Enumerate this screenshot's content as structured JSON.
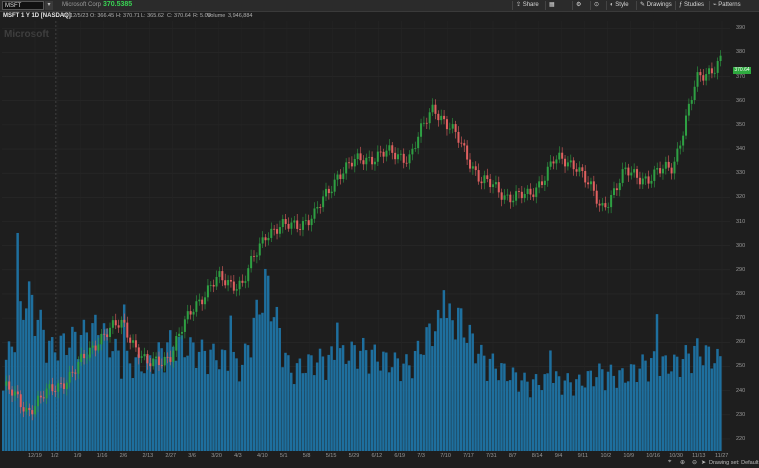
{
  "header": {
    "symbol": "MSFT",
    "company": "Microsoft Corp",
    "last_price": "370.5385",
    "buttons": [
      {
        "label": "Share",
        "icon": "share-icon"
      },
      {
        "label": "",
        "icon": "layout-icon"
      },
      {
        "label": "",
        "icon": "gear-icon"
      },
      {
        "label": "",
        "icon": "lock-icon"
      },
      {
        "label": "Style",
        "icon": "style-icon"
      },
      {
        "label": "Drawings",
        "icon": "pencil-icon"
      },
      {
        "label": "Studies",
        "icon": "studies-icon"
      },
      {
        "label": "Patterns",
        "icon": "patterns-icon"
      }
    ],
    "rss_glyph": "⚙",
    "menu_glyph": "☰"
  },
  "info": {
    "study": "MSFT 1 Y 1D [NASDAQ]",
    "date": "D: 12/5/23",
    "open": "O: 366.45",
    "high": "H: 370.71",
    "low": "L: 365.62",
    "close": "C: 370.64",
    "rate": "R: 5.00",
    "volume_label": "Volume",
    "volume": "3,946,884"
  },
  "watermark": "Microsoft",
  "price_tag": "370.64",
  "y_axis": [
    "390",
    "380",
    "370",
    "360",
    "350",
    "340",
    "330",
    "320",
    "310",
    "300",
    "290",
    "280",
    "270",
    "260",
    "250",
    "240",
    "230",
    "220"
  ],
  "x_axis": [
    "12/19",
    "1/2",
    "1/9",
    "1/16",
    "2/6",
    "2/13",
    "2/27",
    "3/6",
    "3/20",
    "4/3",
    "4/10",
    "5/1",
    "5/8",
    "5/15",
    "5/29",
    "6/12",
    "6/19",
    "7/3",
    "7/10",
    "7/17",
    "7/31",
    "8/7",
    "8/14",
    "9/4",
    "9/11",
    "10/2",
    "10/9",
    "10/16",
    "10/30",
    "11/13",
    "11/27"
  ],
  "footer": {
    "drawing_set": "Drawing set: Default"
  },
  "chart_data": {
    "type": "candlestick",
    "ylim": [
      215,
      393
    ],
    "up_color": "#2ea043",
    "down_color": "#e06060",
    "volume_color": "#1e6f9e",
    "categories": [
      "12/19",
      "1/2",
      "1/9",
      "1/16",
      "2/6",
      "2/13",
      "2/27",
      "3/6",
      "3/20",
      "4/3",
      "4/10",
      "5/1",
      "5/8",
      "5/15",
      "5/29",
      "6/12",
      "6/19",
      "7/3",
      "7/10",
      "7/17",
      "7/31",
      "8/7",
      "8/14",
      "9/4",
      "9/11",
      "10/2",
      "10/9",
      "10/16",
      "10/30",
      "11/13",
      "11/27"
    ],
    "close": [
      242,
      232,
      240,
      248,
      262,
      268,
      250,
      255,
      276,
      286,
      284,
      306,
      308,
      312,
      330,
      336,
      338,
      337,
      358,
      344,
      327,
      321,
      320,
      335,
      334,
      315,
      330,
      328,
      333,
      368,
      377
    ],
    "volume_relative": [
      0.35,
      0.7,
      0.45,
      0.5,
      0.55,
      0.4,
      0.38,
      0.48,
      0.45,
      0.42,
      0.38,
      0.75,
      0.35,
      0.4,
      0.42,
      0.45,
      0.4,
      0.38,
      0.55,
      0.6,
      0.42,
      0.35,
      0.3,
      0.32,
      0.3,
      0.35,
      0.33,
      0.4,
      0.38,
      0.45,
      0.4
    ]
  }
}
